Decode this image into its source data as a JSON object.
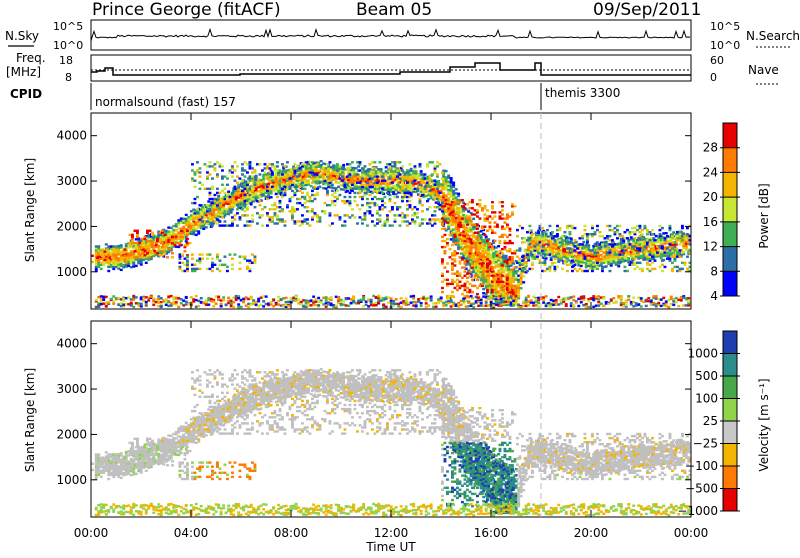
{
  "header": {
    "station": "Prince George (fitACF)",
    "beam": "Beam 05",
    "date": "09/Sep/2011"
  },
  "status_panels": {
    "nsky_label": "N.Sky",
    "nsearch_label": "N.Search",
    "nsky_ticks": [
      "10^5",
      "10^0"
    ],
    "nsearch_ticks": [
      "10^5",
      "10^0"
    ],
    "freq_label_line1": "Freq.",
    "freq_label_line2": "[MHz]",
    "freq_ticks": [
      "18",
      "8"
    ],
    "nave_label": "Nave",
    "nave_ticks": [
      "60",
      "0"
    ],
    "cpid_label": "CPID",
    "cpid_1": "normalsound (fast) 157",
    "cpid_2": "themis 3300"
  },
  "chart_data": [
    {
      "type": "heatmap",
      "name": "power",
      "ylabel": "Slant Range [km]",
      "yticks": [
        "4000",
        "3000",
        "2000",
        "1000"
      ],
      "ylim": [
        180,
        4500
      ],
      "xlim_hours": [
        0,
        24
      ],
      "colorbar_label": "Power [dB]",
      "colorbar_ticks": [
        "28",
        "24",
        "20",
        "16",
        "12",
        "8",
        "4"
      ],
      "colors": [
        "#e60000",
        "#ff7a00",
        "#f4b400",
        "#c8e632",
        "#3fae55",
        "#2c6fa8",
        "#0000ff"
      ],
      "echo_bands": [
        {
          "t": [
            0.0,
            1.5
          ],
          "range": [
            1200,
            1500
          ],
          "level": "strong"
        },
        {
          "t": [
            1.5,
            4.0
          ],
          "range": [
            1300,
            1900
          ],
          "level": "strong"
        },
        {
          "t": [
            3.5,
            6.5
          ],
          "range": [
            1000,
            1400
          ],
          "level": "moderate"
        },
        {
          "t": [
            4.0,
            14.0
          ],
          "range": [
            2000,
            3400
          ],
          "level": "moderate"
        },
        {
          "t": [
            14.0,
            17.0
          ],
          "range": [
            400,
            2600
          ],
          "level": "strong"
        },
        {
          "t": [
            17.0,
            24.0
          ],
          "range": [
            1000,
            2000
          ],
          "level": "moderate"
        }
      ]
    },
    {
      "type": "heatmap",
      "name": "velocity",
      "ylabel": "Slant Range [km]",
      "yticks": [
        "4000",
        "3000",
        "2000",
        "1000"
      ],
      "ylim": [
        180,
        4500
      ],
      "xlim_hours": [
        0,
        24
      ],
      "xticks": [
        "00:00",
        "04:00",
        "08:00",
        "12:00",
        "16:00",
        "20:00",
        "00:00"
      ],
      "xlabel": "Time UT",
      "colorbar_label": "Velocity [m s⁻¹]",
      "colorbar_ticks": [
        "1000",
        "500",
        "100",
        "25",
        "−25",
        "−100",
        "−500",
        "−1000"
      ],
      "colors": [
        "#1f3fae",
        "#2b8c8c",
        "#47a84a",
        "#8fd44a",
        "#c8c8c8",
        "#f4b400",
        "#ff7a00",
        "#e60000"
      ],
      "ground_scatter_color": "#c0c0c0"
    }
  ]
}
